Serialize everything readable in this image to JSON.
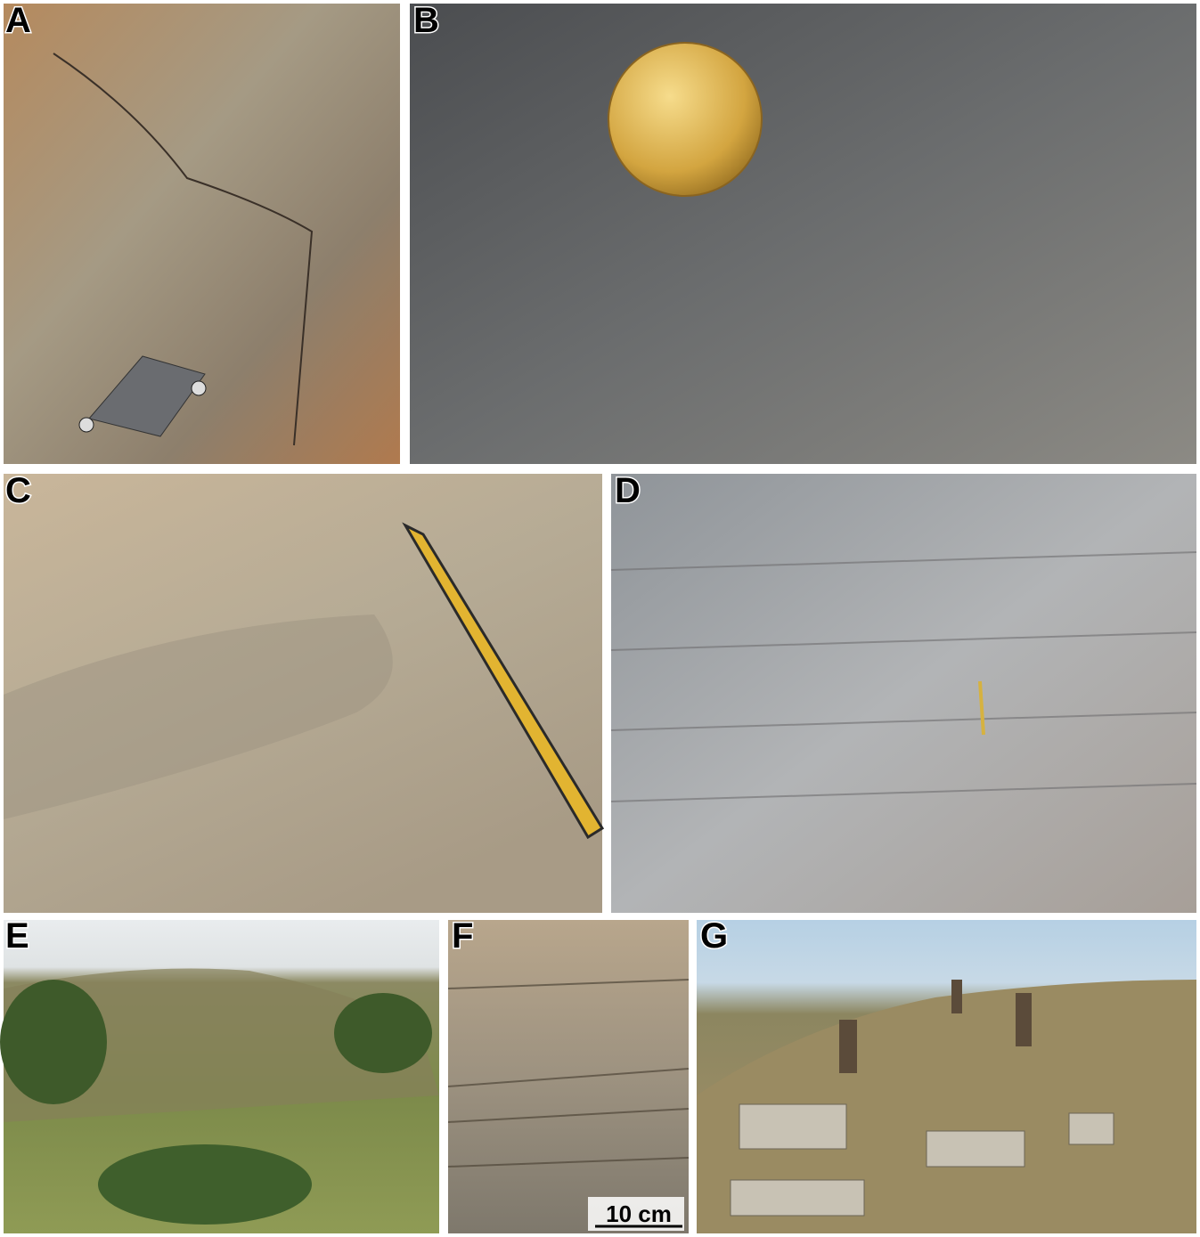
{
  "panels": [
    {
      "label": "A"
    },
    {
      "label": "B"
    },
    {
      "label": "C"
    },
    {
      "label": "D"
    },
    {
      "label": "E"
    },
    {
      "label": "F"
    },
    {
      "label": "G"
    }
  ],
  "scale_bar": {
    "label": "10 cm"
  }
}
